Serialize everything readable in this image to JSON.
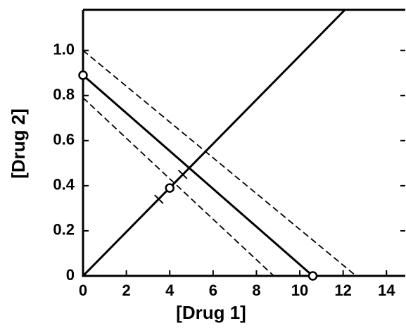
{
  "chart_data": {
    "type": "line",
    "x_label": "[Drug 1]",
    "y_label": "[Drug 2]",
    "xlim": [
      0,
      14.9
    ],
    "ylim": [
      0,
      1.18
    ],
    "xticks": [
      0,
      2,
      4,
      6,
      8,
      10,
      12,
      14
    ],
    "yticks": [
      0,
      0.2,
      0.4,
      0.6,
      0.8,
      {
        "value": 1,
        "label": "1.0"
      }
    ],
    "color": "#000000",
    "series": [
      {
        "x": [
          0,
          10.6
        ],
        "values": [
          0.89,
          0
        ],
        "style": "solid"
      },
      {
        "x": [
          0,
          12.6
        ],
        "values": [
          1.0,
          0
        ],
        "style": "dashed"
      },
      {
        "x": [
          0,
          8.8
        ],
        "values": [
          0.79,
          0
        ],
        "style": "dashed"
      },
      {
        "x": [
          0,
          12.08
        ],
        "values": [
          0,
          1.18
        ],
        "style": "solid"
      },
      {
        "x": [
          0,
          10.6,
          4
        ],
        "values": [
          0.89,
          0,
          0.39
        ],
        "marker": "circle"
      },
      {
        "x": [
          3.5,
          4.6
        ],
        "values": [
          0.34,
          0.45
        ],
        "marker": "tick"
      }
    ]
  }
}
